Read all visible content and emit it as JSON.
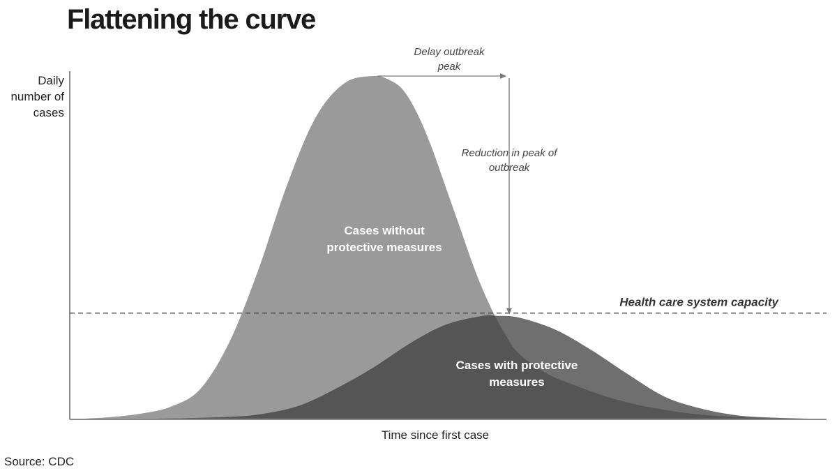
{
  "chart_data": {
    "type": "area",
    "title": "Flattening the curve",
    "xlabel": "Time since first case",
    "ylabel_lines": [
      "Daily",
      "number of",
      "cases"
    ],
    "source": "Source: CDC",
    "x_range": [
      0,
      100
    ],
    "y_range": [
      0,
      100
    ],
    "capacity": {
      "label": "Health care system capacity",
      "value": 30
    },
    "series": [
      {
        "label_lines": [
          "Cases without",
          "protective measures"
        ],
        "x": [
          0,
          4,
          8,
          12,
          16,
          20,
          24,
          28,
          32,
          36,
          40,
          42,
          44,
          46,
          48,
          50,
          52,
          54,
          56,
          58,
          60,
          64,
          68,
          72,
          76,
          80,
          84,
          88,
          92,
          96,
          100
        ],
        "y": [
          0,
          0.5,
          1.5,
          3.5,
          8.5,
          22,
          43,
          68,
          88,
          98,
          100,
          99,
          96,
          89,
          79,
          67,
          55,
          43,
          33,
          25,
          19,
          13,
          9.5,
          6.5,
          4.2,
          2.6,
          1.4,
          0.7,
          0.3,
          0.1,
          0
        ],
        "color": "#9a9a9a"
      },
      {
        "label_lines": [
          "Cases with protective",
          "measures"
        ],
        "x": [
          0,
          10,
          20,
          25,
          30,
          35,
          40,
          45,
          50,
          55,
          57,
          60,
          65,
          70,
          75,
          80,
          85,
          90,
          95,
          100
        ],
        "y": [
          0,
          0,
          0.5,
          1.5,
          4,
          9,
          15,
          22,
          27.5,
          30,
          30,
          29.5,
          26,
          20,
          13,
          6.5,
          3,
          1,
          0.3,
          0
        ],
        "color": "#6f6f70"
      }
    ],
    "annotations": {
      "delay": [
        "Delay outbreak",
        "peak"
      ],
      "reduction": [
        "Reduction in peak of",
        "outbreak"
      ]
    },
    "colors": {
      "overlap": "#555556",
      "axis": "#666666",
      "annotation": "#777777"
    }
  }
}
